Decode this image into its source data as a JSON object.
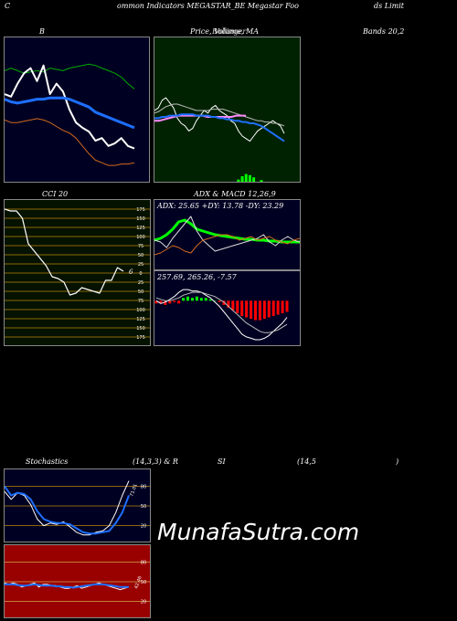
{
  "header": {
    "left": "C",
    "title": "ommon  Indicators MEGASTAR_BE Megastar Foo",
    "right": "ds Limit"
  },
  "labels": {
    "bollinger_left": "B",
    "bollinger_mid": "Price,  Volume,  MA",
    "bollinger_overlap": "Bollinger",
    "bollinger_right": "Bands 20,2",
    "cci": "CCI 20",
    "adx": "ADX  & MACD 12,26,9",
    "stoch_left": "Stochastics",
    "stoch_params": "(14,3,3) & R",
    "stoch_si": "SI",
    "stoch_rsi_params": "(14,5",
    "stoch_close": ")"
  },
  "watermark": "MunafaSutra.com",
  "colors": {
    "navy": "#000022",
    "cci_bg": "#061200",
    "cci_grid": "#b8860b",
    "ma_bg": "#002200",
    "rsi_bg": "#990000",
    "blue": "#1e6fff",
    "green": "#00ff00",
    "orange": "#d2691e"
  },
  "chart_data": [
    {
      "type": "line",
      "name": "bollinger",
      "ylim": [
        0,
        100
      ],
      "series": [
        {
          "name": "upper",
          "color": "#00aa00",
          "values": [
            80,
            82,
            80,
            78,
            79,
            80,
            79,
            82,
            81,
            80,
            82,
            83,
            84,
            85,
            84,
            82,
            80,
            78,
            75,
            70,
            66
          ]
        },
        {
          "name": "price",
          "color": "#ffffff",
          "values": [
            62,
            60,
            70,
            78,
            82,
            72,
            84,
            62,
            70,
            64,
            50,
            40,
            36,
            33,
            26,
            28,
            22,
            24,
            28,
            22,
            20
          ]
        },
        {
          "name": "middle",
          "color": "#1e6fff",
          "values": [
            58,
            56,
            55,
            56,
            57,
            58,
            58,
            59,
            59,
            59,
            58,
            56,
            54,
            52,
            48,
            46,
            44,
            42,
            40,
            38,
            36
          ]
        },
        {
          "name": "lower",
          "color": "#d2691e",
          "values": [
            42,
            40,
            40,
            41,
            42,
            43,
            42,
            40,
            37,
            34,
            32,
            28,
            22,
            16,
            11,
            9,
            7,
            7,
            8,
            8,
            9
          ]
        }
      ]
    },
    {
      "type": "line",
      "name": "price-ma",
      "ylim": [
        0,
        100
      ],
      "series": [
        {
          "name": "price",
          "color": "#ffffff",
          "values": [
            50,
            52,
            58,
            60,
            56,
            52,
            44,
            40,
            38,
            34,
            36,
            42,
            46,
            50,
            48,
            52,
            54,
            50,
            48,
            46,
            42,
            40,
            34,
            30,
            28,
            26,
            30,
            34,
            36,
            38,
            40,
            42,
            40,
            38,
            32
          ]
        },
        {
          "name": "ma1",
          "color": "#bbbbbb",
          "values": [
            48,
            49,
            51,
            53,
            54,
            55,
            55,
            54,
            53,
            52,
            51,
            50,
            50,
            50,
            50,
            51,
            51,
            51,
            51,
            50,
            49,
            48,
            47,
            46,
            45,
            44,
            43,
            42,
            42,
            41,
            41,
            40,
            40,
            39,
            38
          ]
        },
        {
          "name": "ma2",
          "color": "#ff88ff",
          "values": [
            42,
            42,
            43,
            44,
            45,
            46,
            46,
            46,
            46,
            46,
            46,
            45,
            45,
            45,
            45,
            45,
            45,
            46,
            46,
            46
          ]
        },
        {
          "name": "ma3",
          "color": "#1e6fff",
          "values": [
            44,
            44,
            45,
            45,
            46,
            46,
            46,
            47,
            47,
            47,
            47,
            46,
            46,
            46,
            46,
            45,
            45,
            44,
            44,
            43,
            43,
            42,
            42,
            41,
            41,
            40,
            40,
            39,
            38,
            36,
            34,
            32,
            30,
            28,
            26
          ]
        }
      ],
      "volume": [
        0,
        0,
        0,
        0,
        0,
        0,
        0,
        0,
        0,
        0,
        0,
        0,
        0,
        0,
        0,
        0,
        0,
        0,
        0,
        0,
        0,
        0,
        4,
        10,
        14,
        12,
        8,
        0,
        3,
        0,
        0,
        0,
        0,
        0,
        0
      ]
    },
    {
      "type": "line",
      "name": "cci",
      "ylim": [
        -175,
        175
      ],
      "ticks": [
        175,
        150,
        125,
        100,
        75,
        50,
        25,
        0,
        -25,
        -50,
        -75,
        -100,
        -125,
        -150,
        -175
      ],
      "tick_labels": [
        "175",
        "150",
        "125",
        "100",
        "75",
        "50",
        "25",
        "0",
        "25",
        "50",
        "75",
        "100",
        "125",
        "150",
        "175"
      ],
      "values": [
        175,
        170,
        170,
        150,
        80,
        60,
        40,
        20,
        -10,
        -15,
        -25,
        -60,
        -55,
        -40,
        -45,
        -50,
        -55,
        -20,
        -20,
        15,
        5
      ],
      "last_value_label": "6"
    },
    {
      "type": "line",
      "name": "adx",
      "ylim": [
        0,
        60
      ],
      "annotation": "ADX: 25.65  +DY: 13.78  -DY: 23.29",
      "series": [
        {
          "name": "adx",
          "color": "#00ff00",
          "values": [
            30,
            32,
            36,
            42,
            50,
            52,
            48,
            42,
            40,
            38,
            36,
            35,
            34,
            33,
            32,
            31,
            31,
            30,
            30,
            29,
            29,
            28,
            28,
            28,
            28
          ]
        },
        {
          "name": "plus_di",
          "color": "#dddddd",
          "values": [
            30,
            28,
            22,
            32,
            40,
            48,
            56,
            40,
            30,
            24,
            18,
            20,
            22,
            24,
            26,
            28,
            30,
            32,
            36,
            28,
            24,
            30,
            34,
            30,
            28
          ]
        },
        {
          "name": "minus_di",
          "color": "#d2691e",
          "values": [
            14,
            16,
            20,
            24,
            22,
            18,
            16,
            24,
            30,
            32,
            34,
            36,
            36,
            34,
            30,
            32,
            34,
            30,
            32,
            34,
            30,
            28,
            26,
            30,
            32
          ]
        }
      ]
    },
    {
      "type": "bar",
      "name": "macd",
      "ylim": [
        -30,
        12
      ],
      "annotation": "257.69,  265.26,  -7.57",
      "histogram": [
        -2,
        -2,
        -3,
        -2,
        -1,
        -2,
        2,
        3,
        2,
        3,
        2,
        2,
        1,
        0,
        -1,
        -3,
        -5,
        -7,
        -9,
        -11,
        -12,
        -13,
        -14,
        -14,
        -13,
        -12,
        -11,
        -10,
        -9,
        -8
      ],
      "series": [
        {
          "name": "macd",
          "color": "#ffffff",
          "values": [
            0,
            -2,
            -1,
            1,
            3,
            6,
            8,
            8,
            7,
            7,
            6,
            4,
            2,
            -1,
            -4,
            -8,
            -12,
            -16,
            -20,
            -24,
            -26,
            -27,
            -28,
            -28,
            -27,
            -25,
            -22,
            -19,
            -16,
            -12
          ]
        },
        {
          "name": "signal",
          "color": "#bbbbbb",
          "values": [
            2,
            1,
            0,
            0,
            1,
            2,
            4,
            5,
            6,
            6,
            6,
            5,
            4,
            3,
            1,
            -1,
            -4,
            -7,
            -10,
            -13,
            -16,
            -18,
            -20,
            -22,
            -23,
            -23,
            -22,
            -21,
            -19,
            -17
          ]
        }
      ]
    },
    {
      "type": "line",
      "name": "stochastics",
      "ylim": [
        0,
        100
      ],
      "ticks": [
        80,
        50,
        20
      ],
      "tick_labels": [
        "80",
        "50",
        "20"
      ],
      "value_label": "71.01",
      "series": [
        {
          "name": "k",
          "color": "#ffffff",
          "values": [
            72,
            60,
            70,
            66,
            52,
            30,
            20,
            24,
            22,
            26,
            18,
            10,
            6,
            6,
            10,
            12,
            20,
            40,
            66,
            88
          ]
        },
        {
          "name": "d",
          "color": "#1e6fff",
          "values": [
            80,
            66,
            70,
            68,
            60,
            42,
            30,
            26,
            24,
            24,
            22,
            16,
            10,
            8,
            8,
            10,
            12,
            24,
            40,
            66
          ]
        }
      ]
    },
    {
      "type": "line",
      "name": "rsi",
      "ylim": [
        0,
        100
      ],
      "ticks": [
        80,
        50,
        20
      ],
      "tick_labels": [
        "80",
        "50",
        "20"
      ],
      "value_label": "42.46",
      "series": [
        {
          "name": "rsi",
          "color": "#ffffff",
          "values": [
            48,
            46,
            48,
            46,
            42,
            44,
            46,
            48,
            42,
            46,
            46,
            44,
            44,
            42,
            40,
            40,
            42,
            44,
            40,
            42,
            44,
            46,
            48,
            46,
            44,
            42,
            40,
            38,
            40,
            42
          ]
        },
        {
          "name": "signal",
          "color": "#1e6fff",
          "values": [
            46,
            46,
            46,
            45,
            44,
            44,
            45,
            46,
            45,
            44,
            44,
            44,
            43,
            43,
            42,
            42,
            41,
            42,
            43,
            44,
            45,
            46,
            46,
            46,
            45,
            44,
            43,
            42,
            42,
            42
          ]
        }
      ]
    }
  ]
}
